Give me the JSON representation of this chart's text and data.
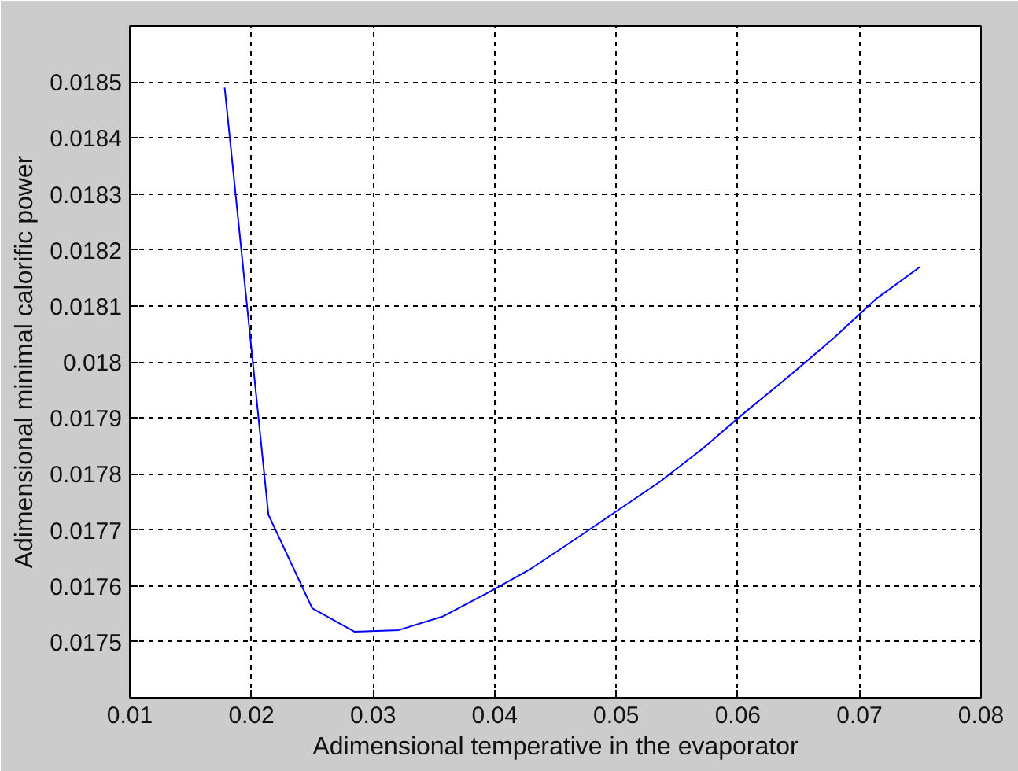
{
  "chart_data": {
    "type": "line",
    "xlabel": "Adimensional temperative in the evaporator",
    "ylabel": "Adimensional minimal calorific power",
    "x": [
      0.0178,
      0.0214,
      0.025,
      0.0285,
      0.0321,
      0.0357,
      0.0393,
      0.0428,
      0.0464,
      0.05,
      0.0536,
      0.0571,
      0.0607,
      0.0643,
      0.0679,
      0.0714,
      0.075
    ],
    "series": [
      {
        "color": "#0000ff",
        "values": [
          0.01849,
          0.017727,
          0.01756,
          0.017518,
          0.017521,
          0.017545,
          0.017586,
          0.017628,
          0.01768,
          0.017733,
          0.017786,
          0.017845,
          0.017912,
          0.017976,
          0.018043,
          0.018113,
          0.01817
        ]
      }
    ],
    "xlim": [
      0.01,
      0.08
    ],
    "ylim": [
      0.0174,
      0.0186
    ],
    "xticks": [
      0.01,
      0.02,
      0.03,
      0.04,
      0.05,
      0.06,
      0.07,
      0.08
    ],
    "yticks": [
      0.0175,
      0.0176,
      0.0177,
      0.0178,
      0.0179,
      0.018,
      0.0181,
      0.0182,
      0.0183,
      0.0184,
      0.0185
    ],
    "grid": true,
    "marker": "none",
    "line_style": "solid"
  }
}
